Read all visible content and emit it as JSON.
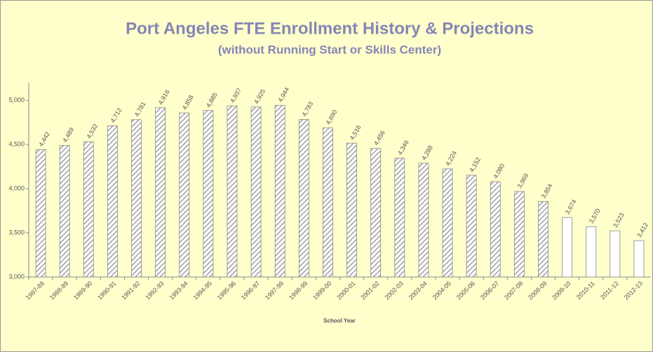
{
  "chart_data": {
    "type": "bar",
    "title": "Port Angeles FTE Enrollment History & Projections",
    "subtitle": "(without Running Start or Skills Center)",
    "x_label": "School Year",
    "categories": [
      "1987-88",
      "1988-89",
      "1989-90",
      "1990-91",
      "1991-92",
      "1992-93",
      "1993-94",
      "1994-95",
      "1995-96",
      "1996-97",
      "1997-98",
      "1998-99",
      "1999-00",
      "2000-01",
      "2001-02",
      "2002-03",
      "2003-04",
      "2004-05",
      "2005-06",
      "2006-07",
      "2007-08",
      "2008-09",
      "2009-10",
      "2010-11",
      "2011-12",
      "2012-13"
    ],
    "series": [
      {
        "color": "#a0a0a0",
        "pattern": "hatch",
        "values": [
          4442,
          4489,
          4532,
          4712,
          4781,
          4916,
          4858,
          4885,
          4937,
          4925,
          4944,
          4783,
          4690,
          4516,
          4456,
          4346,
          4288,
          4224,
          4152,
          4080,
          3969,
          3854,
          null,
          null,
          null,
          null
        ],
        "value_labels": [
          "4,442",
          "4,489",
          "4,532",
          "4,712",
          "4,781",
          "4,916",
          "4,858",
          "4,885",
          "4,937",
          "4,925",
          "4,944",
          "4,783",
          "4,690",
          "4,516",
          "4,456",
          "4,346",
          "4,288",
          "4,224",
          "4,152",
          "4,080",
          "3,969",
          "3,854",
          null,
          null,
          null,
          null
        ]
      },
      {
        "color": "#ffffff",
        "values": [
          null,
          null,
          null,
          null,
          null,
          null,
          null,
          null,
          null,
          null,
          null,
          null,
          null,
          null,
          null,
          null,
          null,
          null,
          null,
          null,
          null,
          null,
          3674,
          3570,
          3523,
          3412
        ],
        "value_labels": [
          null,
          null,
          null,
          null,
          null,
          null,
          null,
          null,
          null,
          null,
          null,
          null,
          null,
          null,
          null,
          null,
          null,
          null,
          null,
          null,
          null,
          null,
          "3,674",
          "3,570",
          "3,523",
          "3,412"
        ]
      }
    ],
    "ylim": [
      3000,
      5200
    ],
    "yticks": [
      {
        "value": 3000,
        "label": "3,000"
      },
      {
        "value": 3500,
        "label": "3,500"
      },
      {
        "value": 4000,
        "label": "4,000"
      },
      {
        "value": 4500,
        "label": "4,500"
      },
      {
        "value": 5000,
        "label": "5,000"
      }
    ],
    "grid": false
  }
}
